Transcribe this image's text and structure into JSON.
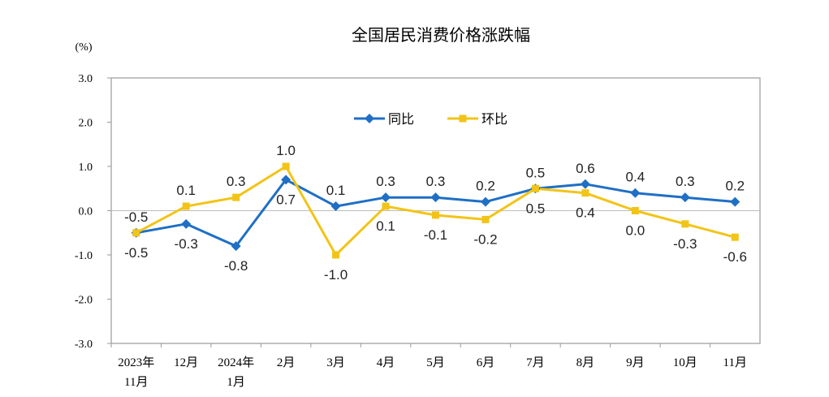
{
  "chart_data": {
    "type": "line",
    "title": "全国居民消费价格涨跌幅",
    "unit_label": "(%)",
    "categories": [
      [
        "2023年",
        "11月"
      ],
      [
        "12月"
      ],
      [
        "2024年",
        "1月"
      ],
      [
        "2月"
      ],
      [
        "3月"
      ],
      [
        "4月"
      ],
      [
        "5月"
      ],
      [
        "6月"
      ],
      [
        "7月"
      ],
      [
        "8月"
      ],
      [
        "9月"
      ],
      [
        "10月"
      ],
      [
        "11月"
      ]
    ],
    "ylim": [
      -3.0,
      3.0
    ],
    "yticks": [
      "3.0",
      "2.0",
      "1.0",
      "0.0",
      "-1.0",
      "-2.0",
      "-3.0"
    ],
    "grid": false,
    "legend_position": "top-center",
    "series": [
      {
        "name": "同比",
        "color": "#1f6fc5",
        "marker": "diamond",
        "values": [
          -0.5,
          -0.3,
          -0.8,
          0.7,
          0.1,
          0.3,
          0.3,
          0.2,
          0.5,
          0.6,
          0.4,
          0.3,
          0.2
        ],
        "labels": [
          "-0.5",
          "-0.3",
          "-0.8",
          "0.7",
          "0.1",
          "0.3",
          "0.3",
          "0.2",
          "0.5",
          "0.6",
          "0.4",
          "0.3",
          "0.2"
        ]
      },
      {
        "name": "环比",
        "color": "#f2c417",
        "marker": "square",
        "values": [
          -0.5,
          0.1,
          0.3,
          1.0,
          -1.0,
          0.1,
          -0.1,
          -0.2,
          0.5,
          0.4,
          0.0,
          -0.3,
          -0.6
        ],
        "labels": [
          "-0.5",
          "0.1",
          "0.3",
          "1.0",
          "-1.0",
          "0.1",
          "-0.1",
          "-0.2",
          "0.5",
          "0.4",
          "0.0",
          "-0.3",
          "-0.6"
        ]
      }
    ]
  }
}
